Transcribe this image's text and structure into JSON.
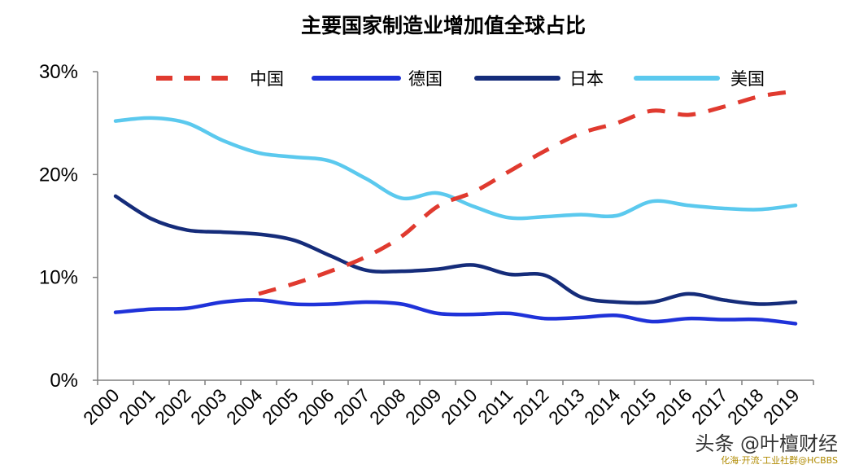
{
  "chart_data": {
    "type": "line",
    "title": "主要国家制造业增加值全球占比",
    "xlabel": "",
    "ylabel": "",
    "categories": [
      "2000",
      "2001",
      "2002",
      "2003",
      "2004",
      "2005",
      "2006",
      "2007",
      "2008",
      "2009",
      "2010",
      "2011",
      "2012",
      "2013",
      "2014",
      "2015",
      "2016",
      "2017",
      "2018",
      "2019"
    ],
    "ylim": [
      0,
      30
    ],
    "yticks": [
      0,
      10,
      20,
      30
    ],
    "ytick_labels": [
      "0%",
      "10%",
      "20%",
      "30%"
    ],
    "grid": false,
    "legend_position": "top",
    "series": [
      {
        "name": "中国",
        "color": "#e03a2f",
        "dash": true,
        "start_index": 4,
        "values": [
          null,
          null,
          null,
          null,
          8.4,
          9.4,
          10.6,
          12.0,
          14.0,
          16.9,
          18.3,
          20.3,
          22.3,
          24.0,
          25.0,
          26.2,
          25.8,
          26.6,
          27.6,
          28.1
        ]
      },
      {
        "name": "德国",
        "color": "#1f32d9",
        "dash": false,
        "start_index": 0,
        "values": [
          6.6,
          6.9,
          7.0,
          7.6,
          7.8,
          7.4,
          7.4,
          7.6,
          7.4,
          6.5,
          6.4,
          6.5,
          6.0,
          6.1,
          6.3,
          5.7,
          6.0,
          5.9,
          5.9,
          5.5
        ]
      },
      {
        "name": "日本",
        "color": "#152c7a",
        "dash": false,
        "start_index": 0,
        "values": [
          17.9,
          15.7,
          14.6,
          14.4,
          14.2,
          13.6,
          12.1,
          10.7,
          10.6,
          10.8,
          11.2,
          10.3,
          10.2,
          8.1,
          7.6,
          7.6,
          8.4,
          7.8,
          7.4,
          7.6
        ]
      },
      {
        "name": "美国",
        "color": "#5bc9ee",
        "dash": false,
        "start_index": 0,
        "values": [
          25.2,
          25.5,
          25.0,
          23.3,
          22.1,
          21.7,
          21.3,
          19.6,
          17.7,
          18.2,
          16.9,
          15.8,
          15.9,
          16.1,
          16.0,
          17.4,
          17.0,
          16.7,
          16.6,
          17.0
        ]
      }
    ]
  },
  "watermark": {
    "main": "头条 @叶檀财经",
    "sub": "化海·开流·工业社群@HCBBS"
  }
}
